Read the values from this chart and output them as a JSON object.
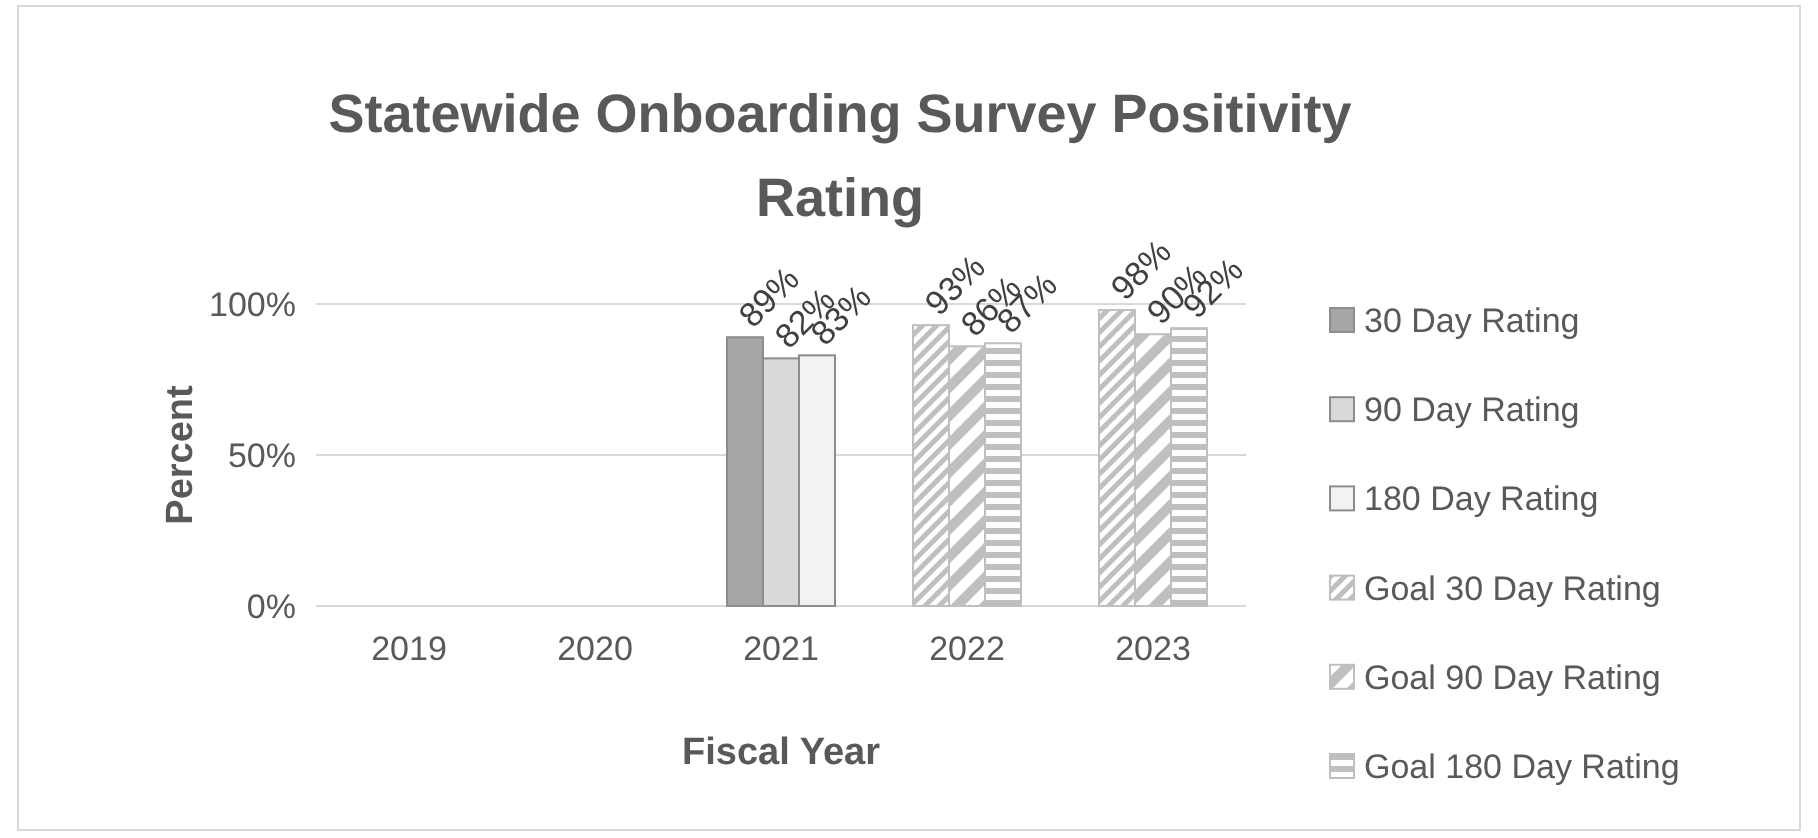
{
  "chart_data": {
    "type": "bar",
    "title": "Statewide Onboarding Survey Positivity Rating",
    "xlabel": "Fiscal Year",
    "ylabel": "Percent",
    "categories": [
      "2019",
      "2020",
      "2021",
      "2022",
      "2023"
    ],
    "series": [
      {
        "name": "30 Day Rating",
        "color": "#a6a6a6",
        "values": [
          null,
          null,
          89,
          null,
          null
        ],
        "value_labels": [
          null,
          null,
          "89%",
          null,
          null
        ]
      },
      {
        "name": "90 Day Rating",
        "color": "#d9d9d9",
        "values": [
          null,
          null,
          82,
          null,
          null
        ],
        "value_labels": [
          null,
          null,
          "82%",
          null,
          null
        ]
      },
      {
        "name": "180 Day Rating",
        "color": "#f2f2f2",
        "values": [
          null,
          null,
          83,
          null,
          null
        ],
        "value_labels": [
          null,
          null,
          "83%",
          null,
          null
        ]
      },
      {
        "name": "Goal 30 Day Rating",
        "color": "#bfbfbf",
        "values": [
          null,
          null,
          null,
          93,
          98
        ],
        "value_labels": [
          null,
          null,
          null,
          "93%",
          "98%"
        ]
      },
      {
        "name": "Goal 90 Day Rating",
        "color": "#bfbfbf",
        "values": [
          null,
          null,
          null,
          86,
          90
        ],
        "value_labels": [
          null,
          null,
          null,
          "86%",
          "90%"
        ]
      },
      {
        "name": "Goal 180 Day Rating",
        "color": "#bfbfbf",
        "values": [
          null,
          null,
          null,
          87,
          92
        ],
        "value_labels": [
          null,
          null,
          null,
          "87%",
          "92%"
        ]
      }
    ],
    "ylim": [
      0,
      100
    ],
    "yticks": [
      {
        "value": 0,
        "label": "0%"
      },
      {
        "value": 50,
        "label": "50%"
      },
      {
        "value": 100,
        "label": "100%"
      }
    ],
    "grid": "y",
    "legend": "right"
  }
}
